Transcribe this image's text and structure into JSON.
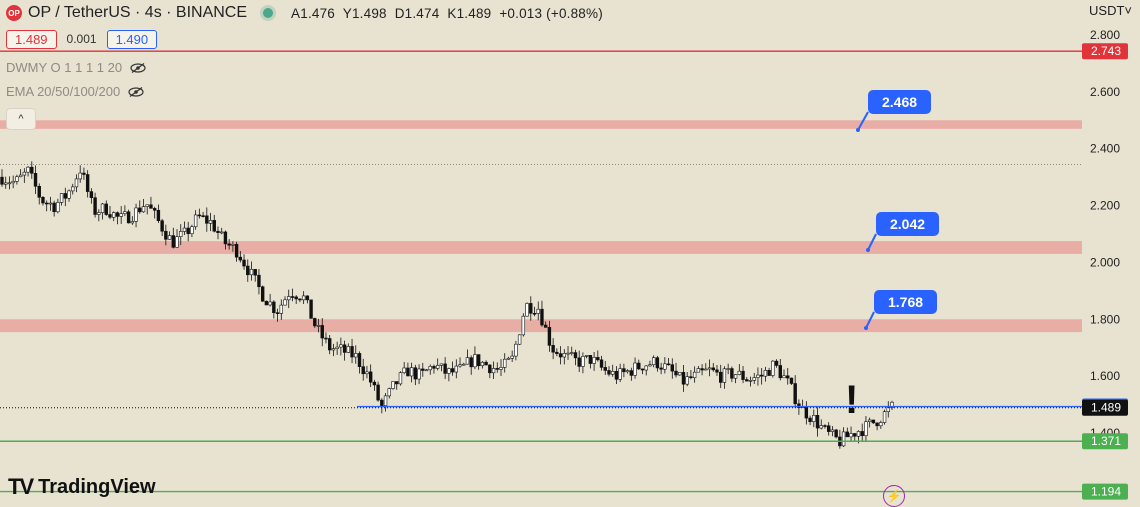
{
  "header": {
    "logo_text": "OP",
    "symbol": "OP / TetherUS · 4s · BINANCE",
    "ohlc": {
      "a": "A1.476",
      "y": "Y1.498",
      "d": "D1.474",
      "k": "K1.489",
      "change": "+0.013 (+0.88%)"
    }
  },
  "prices": {
    "sell": "1.489",
    "spread": "0.001",
    "buy": "1.490"
  },
  "indicators": [
    {
      "label": "DWMY O 1 1 1 1 20"
    },
    {
      "label": "EMA 20/50/100/200"
    }
  ],
  "currency": "USDT˅",
  "exclamation": "!",
  "brand": "TradingView",
  "colors": {
    "background": "#e8e2d1",
    "sell": "#e0333a",
    "buy": "#2962ff",
    "support": "#4caf50",
    "zone": "#e8a39e"
  },
  "chart_data": {
    "type": "candlestick",
    "y_ticks": [
      "2.800",
      "2.600",
      "2.400",
      "2.200",
      "2.000",
      "1.800",
      "1.600",
      "1.400"
    ],
    "ylim": [
      1.15,
      2.85
    ],
    "zones": [
      {
        "from": 2.47,
        "to": 2.5
      },
      {
        "from": 2.03,
        "to": 2.075
      },
      {
        "from": 1.755,
        "to": 1.8
      }
    ],
    "callouts": [
      {
        "label": "2.468",
        "value": 2.468
      },
      {
        "label": "2.042",
        "value": 2.042
      },
      {
        "label": "1.768",
        "value": 1.768
      }
    ],
    "levels": [
      {
        "label": "2.743",
        "value": 2.743,
        "color": "#e0333a",
        "style": "solid"
      },
      {
        "label": "1.493",
        "value": 1.493,
        "color": "#2962ff",
        "style": "solid"
      },
      {
        "label": "1.489",
        "value": 1.489,
        "color": "#111111",
        "style": "dotted"
      },
      {
        "label": "1.371",
        "value": 1.371,
        "color": "#4caf50",
        "style": "solid"
      },
      {
        "label": "1.194",
        "value": 1.194,
        "color": "#4caf50",
        "style": "solid"
      }
    ],
    "close_path": [
      2.3,
      2.28,
      2.32,
      2.22,
      2.2,
      2.24,
      2.33,
      2.18,
      2.19,
      2.15,
      2.17,
      2.21,
      2.14,
      2.07,
      2.1,
      2.16,
      2.14,
      2.07,
      2.04,
      1.96,
      1.88,
      1.83,
      1.9,
      1.88,
      1.77,
      1.7,
      1.69,
      1.67,
      1.6,
      1.49,
      1.57,
      1.62,
      1.6,
      1.64,
      1.61,
      1.62,
      1.66,
      1.64,
      1.62,
      1.66,
      1.85,
      1.84,
      1.7,
      1.67,
      1.65,
      1.66,
      1.62,
      1.6,
      1.62,
      1.64,
      1.65,
      1.62,
      1.58,
      1.6,
      1.62,
      1.6,
      1.61,
      1.59,
      1.6,
      1.64,
      1.58,
      1.49,
      1.45,
      1.4,
      1.37,
      1.4,
      1.42,
      1.45,
      1.49
    ]
  }
}
